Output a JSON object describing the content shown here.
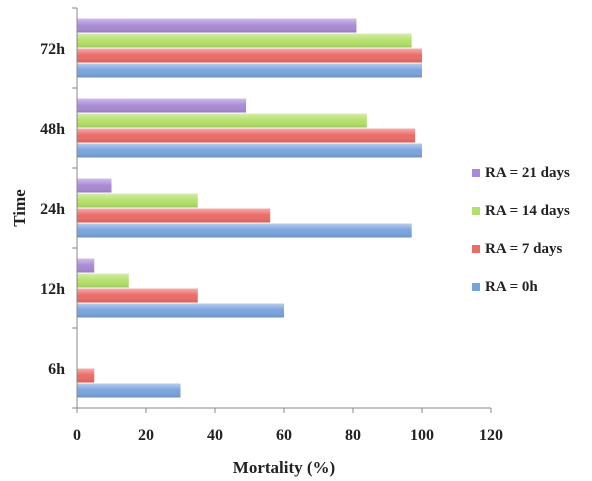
{
  "chart_data": {
    "type": "bar",
    "orientation": "horizontal",
    "title": "",
    "xlabel": "Mortality (%)",
    "ylabel": "Time",
    "xlim": [
      0,
      120
    ],
    "x_ticks": [
      0,
      20,
      40,
      60,
      80,
      100,
      120
    ],
    "categories": [
      "6h",
      "12h",
      "24h",
      "48h",
      "72h"
    ],
    "grid": false,
    "legend_position": "right",
    "series": [
      {
        "name": "RA = 0h",
        "color": "#7aa3dc",
        "values": [
          30,
          60,
          97,
          100,
          100
        ]
      },
      {
        "name": "RA = 7 days",
        "color": "#ec6b66",
        "values": [
          5,
          35,
          56,
          98,
          100
        ]
      },
      {
        "name": "RA = 14 days",
        "color": "#b3e06a",
        "values": [
          0,
          15,
          35,
          84,
          97
        ]
      },
      {
        "name": "RA = 21 days",
        "color": "#a98ad6",
        "values": [
          0,
          5,
          10,
          49,
          81
        ]
      }
    ],
    "legend_order": [
      3,
      2,
      1,
      0
    ]
  }
}
